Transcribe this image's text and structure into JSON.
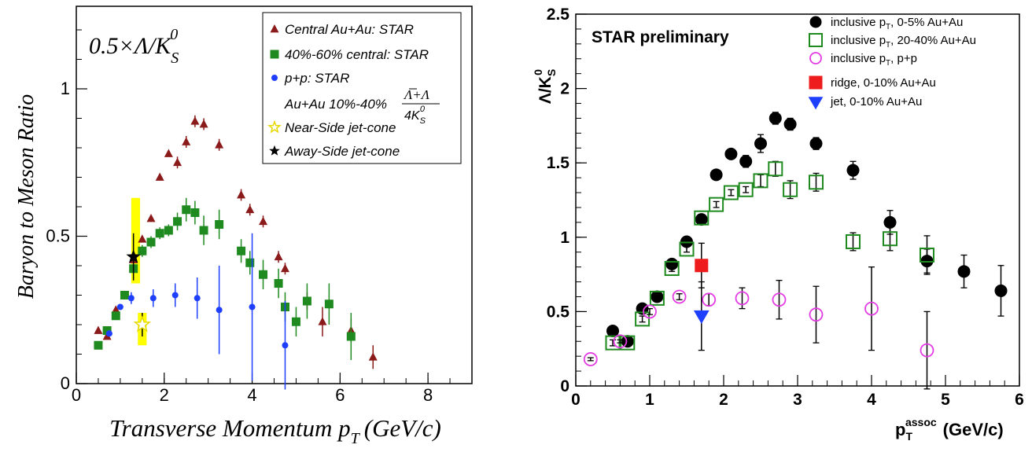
{
  "chart_data": [
    {
      "type": "scatter",
      "title": "0.5×Λ/K",
      "title_sup": "0",
      "title_sub": "S",
      "xlabel": "Transverse Momentum p",
      "xlabel_sub": "T",
      "xlabel_unit": "(GeV/c)",
      "ylabel": "Baryon to Meson Ratio",
      "xlim": [
        0,
        9
      ],
      "ylim": [
        0,
        1.28
      ],
      "xticks": [
        0,
        2,
        4,
        6,
        8
      ],
      "xtick_labels": [
        "0",
        "2",
        "4",
        "6",
        "8"
      ],
      "yticks": [
        0,
        0.5,
        1
      ],
      "ytick_labels": [
        "0",
        "0.5",
        "1"
      ],
      "legend": {
        "placement": "top-right",
        "ratio_formula": "Au+Au 10%-40%",
        "frac_num": "Λ+Λ",
        "frac_den": "4K",
        "frac_den_sub": "S",
        "frac_den_sup": "0"
      },
      "bands": [
        {
          "name": "Near-Side band",
          "x": [
            1.25,
            1.45
          ],
          "y": [
            0.34,
            0.63
          ],
          "color": "#ffff00"
        },
        {
          "name": "Away-Side band",
          "x": [
            1.4,
            1.6
          ],
          "y": [
            0.13,
            0.24
          ],
          "color": "#ffff00"
        }
      ],
      "series": [
        {
          "name": "Central Au+Au: STAR",
          "marker": "triangle",
          "color": "#8b1a1a",
          "points": [
            {
              "x": 0.5,
              "y": 0.18,
              "err": 0.01
            },
            {
              "x": 0.7,
              "y": 0.16,
              "err": 0.01
            },
            {
              "x": 0.9,
              "y": 0.25,
              "err": 0.01
            },
            {
              "x": 1.1,
              "y": 0.3,
              "err": 0.01
            },
            {
              "x": 1.3,
              "y": 0.42,
              "err": 0.01
            },
            {
              "x": 1.5,
              "y": 0.49,
              "err": 0.01
            },
            {
              "x": 1.7,
              "y": 0.56,
              "err": 0.01
            },
            {
              "x": 1.9,
              "y": 0.7,
              "err": 0.01
            },
            {
              "x": 2.1,
              "y": 0.78,
              "err": 0.01
            },
            {
              "x": 2.3,
              "y": 0.75,
              "err": 0.02
            },
            {
              "x": 2.5,
              "y": 0.82,
              "err": 0.02
            },
            {
              "x": 2.7,
              "y": 0.89,
              "err": 0.02
            },
            {
              "x": 2.9,
              "y": 0.88,
              "err": 0.02
            },
            {
              "x": 3.25,
              "y": 0.81,
              "err": 0.02
            },
            {
              "x": 3.75,
              "y": 0.64,
              "err": 0.02
            },
            {
              "x": 3.95,
              "y": 0.59,
              "err": 0.02
            },
            {
              "x": 4.25,
              "y": 0.55,
              "err": 0.02
            },
            {
              "x": 4.6,
              "y": 0.43,
              "err": 0.02
            },
            {
              "x": 4.75,
              "y": 0.39,
              "err": 0.02
            },
            {
              "x": 5.25,
              "y": 0.28,
              "err": 0.03
            },
            {
              "x": 5.6,
              "y": 0.21,
              "err": 0.05
            },
            {
              "x": 6.25,
              "y": 0.18,
              "err": 0.04
            },
            {
              "x": 6.75,
              "y": 0.09,
              "err": 0.04
            }
          ]
        },
        {
          "name": "40%-60% central: STAR",
          "marker": "square",
          "color": "#1f8a1f",
          "points": [
            {
              "x": 0.5,
              "y": 0.13,
              "err": 0.01
            },
            {
              "x": 0.7,
              "y": 0.18,
              "err": 0.01
            },
            {
              "x": 0.9,
              "y": 0.23,
              "err": 0.01
            },
            {
              "x": 1.1,
              "y": 0.3,
              "err": 0.01
            },
            {
              "x": 1.3,
              "y": 0.39,
              "err": 0.01
            },
            {
              "x": 1.5,
              "y": 0.45,
              "err": 0.02
            },
            {
              "x": 1.7,
              "y": 0.48,
              "err": 0.02
            },
            {
              "x": 1.9,
              "y": 0.51,
              "err": 0.02
            },
            {
              "x": 2.1,
              "y": 0.52,
              "err": 0.02
            },
            {
              "x": 2.3,
              "y": 0.55,
              "err": 0.03
            },
            {
              "x": 2.5,
              "y": 0.59,
              "err": 0.04
            },
            {
              "x": 2.7,
              "y": 0.58,
              "err": 0.04
            },
            {
              "x": 2.9,
              "y": 0.52,
              "err": 0.05
            },
            {
              "x": 3.25,
              "y": 0.54,
              "err": 0.05
            },
            {
              "x": 3.75,
              "y": 0.45,
              "err": 0.04
            },
            {
              "x": 3.95,
              "y": 0.41,
              "err": 0.04
            },
            {
              "x": 4.25,
              "y": 0.37,
              "err": 0.05
            },
            {
              "x": 4.6,
              "y": 0.34,
              "err": 0.05
            },
            {
              "x": 4.75,
              "y": 0.26,
              "err": 0.05
            },
            {
              "x": 5.0,
              "y": 0.21,
              "err": 0.05
            },
            {
              "x": 5.25,
              "y": 0.28,
              "err": 0.06
            },
            {
              "x": 5.75,
              "y": 0.27,
              "err": 0.07
            },
            {
              "x": 6.25,
              "y": 0.16,
              "err": 0.08
            }
          ]
        },
        {
          "name": "p+p: STAR",
          "marker": "circle",
          "color": "#1f3fff",
          "points": [
            {
              "x": 0.75,
              "y": 0.17,
              "err": 0.01
            },
            {
              "x": 1.0,
              "y": 0.26,
              "err": 0.01
            },
            {
              "x": 1.25,
              "y": 0.29,
              "err": 0.02
            },
            {
              "x": 1.75,
              "y": 0.29,
              "err": 0.03
            },
            {
              "x": 2.25,
              "y": 0.3,
              "err": 0.04
            },
            {
              "x": 2.75,
              "y": 0.29,
              "err": 0.07
            },
            {
              "x": 3.25,
              "y": 0.25,
              "err": 0.15
            },
            {
              "x": 4.0,
              "y": 0.26,
              "err": 0.25
            },
            {
              "x": 4.75,
              "y": 0.13,
              "err": 0.15
            }
          ]
        },
        {
          "name": "Near-Side jet-cone",
          "marker": "star-open",
          "color": "#e6d800",
          "points": [
            {
              "x": 1.5,
              "y": 0.2,
              "err": 0.04
            }
          ]
        },
        {
          "name": "Away-Side jet-cone",
          "marker": "star-filled",
          "color": "#000000",
          "points": [
            {
              "x": 1.3,
              "y": 0.43,
              "err": 0.08
            }
          ]
        }
      ]
    },
    {
      "type": "scatter",
      "title": "STAR preliminary",
      "ylabel": "Λ/K",
      "ylabel_sub": "S",
      "ylabel_sup": "0",
      "xlabel": "p",
      "xlabel_sub": "T",
      "xlabel_sup": "assoc",
      "xlabel_unit": "(GeV/c)",
      "xlim": [
        0,
        6
      ],
      "ylim": [
        0,
        2.5
      ],
      "xticks": [
        0,
        1,
        2,
        3,
        4,
        5,
        6
      ],
      "xtick_labels": [
        "0",
        "1",
        "2",
        "3",
        "4",
        "5",
        "6"
      ],
      "yticks": [
        0,
        0.5,
        1,
        1.5,
        2,
        2.5
      ],
      "ytick_labels": [
        "0",
        "0.5",
        "1",
        "1.5",
        "2",
        "2.5"
      ],
      "legend": {
        "placement": "top-right",
        "pt": "p",
        "pt_sub": "T"
      },
      "series": [
        {
          "name": "inclusive p",
          "name_rest": ", 0-5% Au+Au",
          "subscript": "T",
          "marker": "circle",
          "color": "#000000",
          "points": [
            {
              "x": 0.5,
              "y": 0.37,
              "err": 0.03
            },
            {
              "x": 0.7,
              "y": 0.3,
              "err": 0.03
            },
            {
              "x": 0.9,
              "y": 0.52,
              "err": 0.03
            },
            {
              "x": 1.1,
              "y": 0.6,
              "err": 0.03
            },
            {
              "x": 1.3,
              "y": 0.82,
              "err": 0.03
            },
            {
              "x": 1.5,
              "y": 0.97,
              "err": 0.03
            },
            {
              "x": 1.7,
              "y": 1.12,
              "err": 0.03
            },
            {
              "x": 1.9,
              "y": 1.42,
              "err": 0.03
            },
            {
              "x": 2.1,
              "y": 1.56,
              "err": 0.03
            },
            {
              "x": 2.3,
              "y": 1.51,
              "err": 0.04
            },
            {
              "x": 2.5,
              "y": 1.63,
              "err": 0.06
            },
            {
              "x": 2.7,
              "y": 1.8,
              "err": 0.04
            },
            {
              "x": 2.9,
              "y": 1.76,
              "err": 0.04
            },
            {
              "x": 3.25,
              "y": 1.63,
              "err": 0.04
            },
            {
              "x": 3.75,
              "y": 1.45,
              "err": 0.06
            },
            {
              "x": 4.25,
              "y": 1.1,
              "err": 0.08
            },
            {
              "x": 4.75,
              "y": 0.84,
              "err": 0.08
            },
            {
              "x": 5.25,
              "y": 0.77,
              "err": 0.11
            },
            {
              "x": 5.75,
              "y": 0.64,
              "err": 0.17
            }
          ]
        },
        {
          "name": "inclusive p",
          "name_rest": ", 20-40% Au+Au",
          "subscript": "T",
          "marker": "square-open",
          "color": "#1f8a1f",
          "points": [
            {
              "x": 0.5,
              "y": 0.29,
              "err": 0.02
            },
            {
              "x": 0.7,
              "y": 0.29,
              "err": 0.02
            },
            {
              "x": 0.9,
              "y": 0.45,
              "err": 0.02
            },
            {
              "x": 1.1,
              "y": 0.59,
              "err": 0.02
            },
            {
              "x": 1.3,
              "y": 0.79,
              "err": 0.02
            },
            {
              "x": 1.5,
              "y": 0.92,
              "err": 0.02
            },
            {
              "x": 1.7,
              "y": 1.13,
              "err": 0.02
            },
            {
              "x": 1.9,
              "y": 1.22,
              "err": 0.02
            },
            {
              "x": 2.1,
              "y": 1.3,
              "err": 0.02
            },
            {
              "x": 2.3,
              "y": 1.32,
              "err": 0.02
            },
            {
              "x": 2.5,
              "y": 1.38,
              "err": 0.04
            },
            {
              "x": 2.7,
              "y": 1.46,
              "err": 0.05
            },
            {
              "x": 2.9,
              "y": 1.32,
              "err": 0.06
            },
            {
              "x": 3.25,
              "y": 1.37,
              "err": 0.06
            },
            {
              "x": 3.75,
              "y": 0.97,
              "err": 0.06
            },
            {
              "x": 4.25,
              "y": 0.99,
              "err": 0.08
            },
            {
              "x": 4.75,
              "y": 0.88,
              "err": 0.13
            }
          ]
        },
        {
          "name": "inclusive p",
          "name_rest": ", p+p",
          "subscript": "T",
          "marker": "circle-open",
          "color": "#e43ce4",
          "points": [
            {
              "x": 0.2,
              "y": 0.18,
              "err": 0.01
            },
            {
              "x": 0.6,
              "y": 0.3,
              "err": 0.01
            },
            {
              "x": 1.0,
              "y": 0.5,
              "err": 0.02
            },
            {
              "x": 1.4,
              "y": 0.6,
              "err": 0.02
            },
            {
              "x": 1.8,
              "y": 0.58,
              "err": 0.04
            },
            {
              "x": 2.25,
              "y": 0.59,
              "err": 0.07
            },
            {
              "x": 2.75,
              "y": 0.58,
              "err": 0.13
            },
            {
              "x": 3.25,
              "y": 0.48,
              "err": 0.19
            },
            {
              "x": 4.0,
              "y": 0.52,
              "err": 0.28
            },
            {
              "x": 4.75,
              "y": 0.24,
              "err": 0.26
            }
          ]
        },
        {
          "name": "ridge, 0-10% Au+Au",
          "name_rest": "",
          "subscript": "",
          "marker": "square",
          "color": "#ee1c1c",
          "points": [
            {
              "x": 1.7,
              "y": 0.81,
              "err": 0.15
            }
          ]
        },
        {
          "name": "jet, 0-10% Au+Au",
          "name_rest": "",
          "subscript": "",
          "marker": "triangle-down",
          "color": "#1f3fff",
          "points": [
            {
              "x": 1.7,
              "y": 0.47,
              "err": 0.23
            }
          ]
        }
      ]
    }
  ]
}
